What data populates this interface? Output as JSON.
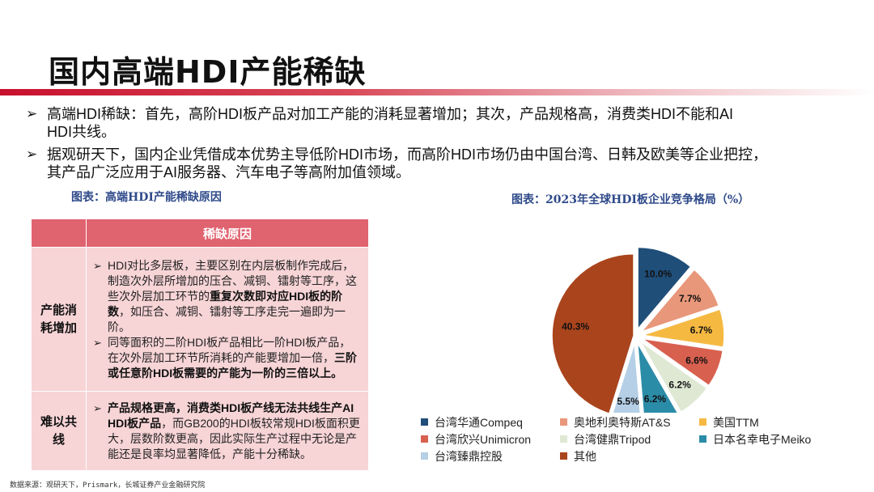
{
  "title": "国内高端HDI产能稀缺",
  "bullets": [
    {
      "arrow": "➢",
      "line1": "高端HDI稀缺：首先，高阶HDI板产品对加工产能的消耗显著增加；其次，产品规格高，消费类HDI不能和AI",
      "line2": "HDI共线。"
    },
    {
      "arrow": "➢",
      "line1": "据观研天下，国内企业凭借成本优势主导低阶HDI市场，而高阶HDI市场仍由中国台湾、日韩及欧美等企业把控，",
      "line2": "其产品广泛应用于AI服务器、汽车电子等高附加值领域。"
    }
  ],
  "table_caption": "图表：高端HDI产能稀缺原因",
  "table": {
    "header": "稀缺原因",
    "row1": {
      "label_a": "产能消",
      "label_b": "耗增加",
      "item1": {
        "arrow": "➢",
        "t1": "HDI对比多层板，主要区别在内层板制作完成后，制造次外层所增加的压合、减铜、镭射等工序，这些次外层加工环节的",
        "bold": "重复次数即对应HDI板的阶数",
        "t2": "，如压合、减铜、镭射等工序走完一遍即为一阶。"
      },
      "item2": {
        "arrow": "➢",
        "t1": "同等面积的二阶HDI板产品相比一阶HDI板产品，在次外层加工环节所消耗的产能要增加一倍，",
        "bold": "三阶或任意阶HDI板需要的产能为一阶的三倍以上。"
      }
    },
    "row2": {
      "label_a": "难以共",
      "label_b": "线",
      "item1": {
        "arrow": "➢",
        "bold": "产品规格更高，消费类HDI板产线无法共线生产AI HDI板产品",
        "t1": "，而GB200的HDI板较常规HDI板面积更大，层数阶数更高，因此实际生产过程中无论是产能还是良率均显著降低，产能十分稀缺。"
      }
    }
  },
  "chart_caption": "图表：2023年全球HDI板企业竞争格局（%）",
  "chart_data": {
    "type": "pie",
    "title": "",
    "slices": [
      {
        "name": "台湾华通Compeq",
        "value": 10.0,
        "label": "10.0%",
        "color": "#1f4e79"
      },
      {
        "name": "奥地利奥特斯AT&S",
        "value": 7.7,
        "label": "7.7%",
        "color": "#e8977a"
      },
      {
        "name": "美国TTM",
        "value": 6.7,
        "label": "6.7%",
        "color": "#f5b942"
      },
      {
        "name": "台湾欣兴Unimicron",
        "value": 6.6,
        "label": "6.6%",
        "color": "#d8604f"
      },
      {
        "name": "台湾健鼎Tripod",
        "value": 6.2,
        "label": "6.2%",
        "color": "#dfe8d3"
      },
      {
        "name": "日本名幸电子Meiko",
        "value": 6.2,
        "label": "6.2%",
        "color": "#2b8ca8"
      },
      {
        "name": "台湾臻鼎控股",
        "value": 5.5,
        "label": "5.5%",
        "color": "#b4cfe6"
      },
      {
        "name": "其他",
        "value": 40.3,
        "label": "40.3%",
        "color": "#a9441c"
      }
    ],
    "legend_position": "bottom"
  },
  "source_text": "数据来源：观研天下，Prismark，长城证券产业金融研究院"
}
